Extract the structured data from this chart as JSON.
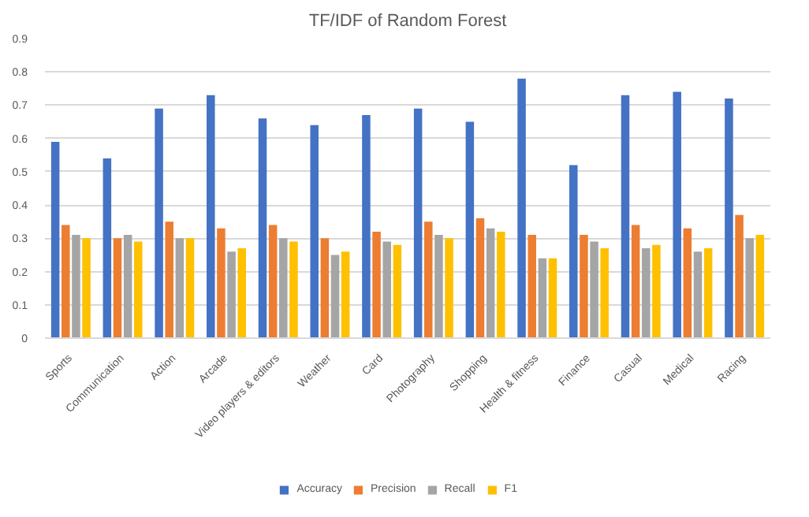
{
  "chart_data": {
    "type": "bar",
    "title": "TF/IDF of Random Forest",
    "categories": [
      "Sports",
      "Communication",
      "Action",
      "Arcade",
      "Video players & editors",
      "Weather",
      "Card",
      "Photography",
      "Shopping",
      "Health & fitness",
      "Finance",
      "Casual",
      "Medical",
      "Racing"
    ],
    "series": [
      {
        "name": "Accuracy",
        "color": "#4472c4",
        "values": [
          0.59,
          0.54,
          0.69,
          0.73,
          0.66,
          0.64,
          0.67,
          0.69,
          0.65,
          0.78,
          0.52,
          0.73,
          0.74,
          0.72
        ]
      },
      {
        "name": "Precision",
        "color": "#ed7d31",
        "values": [
          0.34,
          0.3,
          0.35,
          0.33,
          0.34,
          0.3,
          0.32,
          0.35,
          0.36,
          0.31,
          0.31,
          0.34,
          0.33,
          0.37
        ]
      },
      {
        "name": "Recall",
        "color": "#a5a5a5",
        "values": [
          0.31,
          0.31,
          0.3,
          0.26,
          0.3,
          0.25,
          0.29,
          0.31,
          0.33,
          0.24,
          0.29,
          0.27,
          0.26,
          0.3
        ]
      },
      {
        "name": "F1",
        "color": "#ffc000",
        "values": [
          0.3,
          0.29,
          0.3,
          0.27,
          0.29,
          0.26,
          0.28,
          0.3,
          0.32,
          0.24,
          0.27,
          0.28,
          0.27,
          0.31
        ]
      }
    ],
    "ylim": [
      0,
      0.9
    ],
    "yticks": [
      0,
      0.1,
      0.2,
      0.3,
      0.4,
      0.5,
      0.6,
      0.7,
      0.8,
      0.9
    ],
    "grid": "y",
    "legend": "bottom"
  }
}
